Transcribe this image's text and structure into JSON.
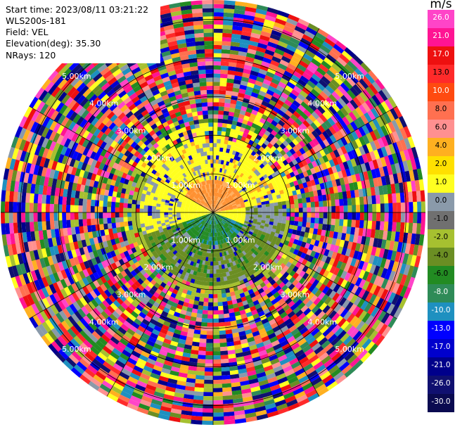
{
  "header": {
    "start_time": "Start time: 2023/08/11 03:21:22",
    "instrument": "WLS200s-181",
    "field": "Field: VEL",
    "elevation": "Elevation(deg): 35.30",
    "nrays": "NRays: 120"
  },
  "rings": {
    "labels": [
      "1.00km",
      "2.00km",
      "3.00km",
      "4.00km",
      "5.00km"
    ],
    "max_range_km": 5.5
  },
  "colorbar": {
    "unit": "m/s",
    "tick_labels": [
      "26.0",
      "21.0",
      "17.0",
      "13.0",
      "10.0",
      "8.0",
      "6.0",
      "4.0",
      "2.0",
      "1.0",
      "0.0",
      "-1.0",
      "-2.0",
      "-4.0",
      "-6.0",
      "-8.0",
      "-10.0",
      "-13.0",
      "-17.0",
      "-21.0",
      "-26.0",
      "-30.0"
    ],
    "colors": [
      "#ff44c8",
      "#ff1493",
      "#ee1010",
      "#ff2a2a",
      "#ff4a10",
      "#ff7050",
      "#ff9090",
      "#ffb020",
      "#ffe000",
      "#ffff20",
      "#8a9aaa",
      "#707070",
      "#a6c030",
      "#6b8e23",
      "#228b22",
      "#2e8b57",
      "#1e90c0",
      "#0000ff",
      "#0000cd",
      "#00008b",
      "#101070",
      "#0a0a50"
    ]
  }
}
